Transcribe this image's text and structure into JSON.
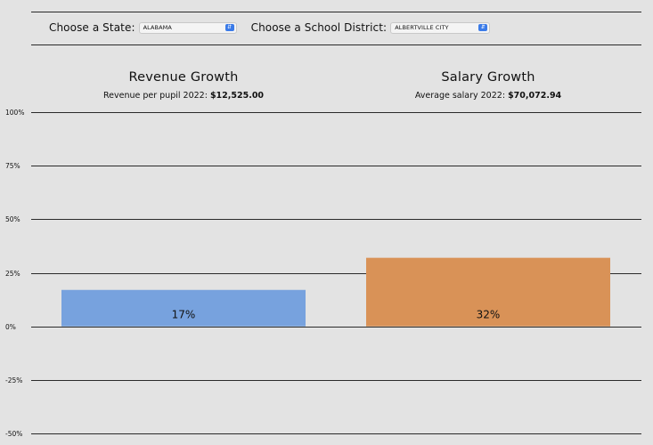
{
  "controls": {
    "state_label": "Choose a State:",
    "state_value": "ALABAMA",
    "district_label": "Choose a School District:",
    "district_value": "ALBERTVILLE CITY"
  },
  "panels": {
    "revenue": {
      "title": "Revenue Growth",
      "subtitle_prefix": "Revenue per pupil 2022:",
      "subtitle_value": "$12,525.00"
    },
    "salary": {
      "title": "Salary Growth",
      "subtitle_prefix": "Average salary 2022:",
      "subtitle_value": "$70,072.94"
    }
  },
  "colors": {
    "revenue_bar": "#77a2de",
    "salary_bar": "#d99257",
    "background": "#e3e3e3",
    "accent_select": "#3b7be8"
  },
  "chart_data": {
    "type": "bar",
    "categories": [
      "Revenue Growth",
      "Salary Growth"
    ],
    "values": [
      17,
      32
    ],
    "value_labels": [
      "17%",
      "32%"
    ],
    "ylim": [
      -50,
      100
    ],
    "yticks": [
      100,
      75,
      50,
      25,
      0,
      -25,
      -50
    ],
    "ytick_labels": [
      "100%",
      "75%",
      "50%",
      "25%",
      "0%",
      "-25%",
      "-50%"
    ],
    "grid": true,
    "colors": [
      "#77a2de",
      "#d99257"
    ]
  }
}
